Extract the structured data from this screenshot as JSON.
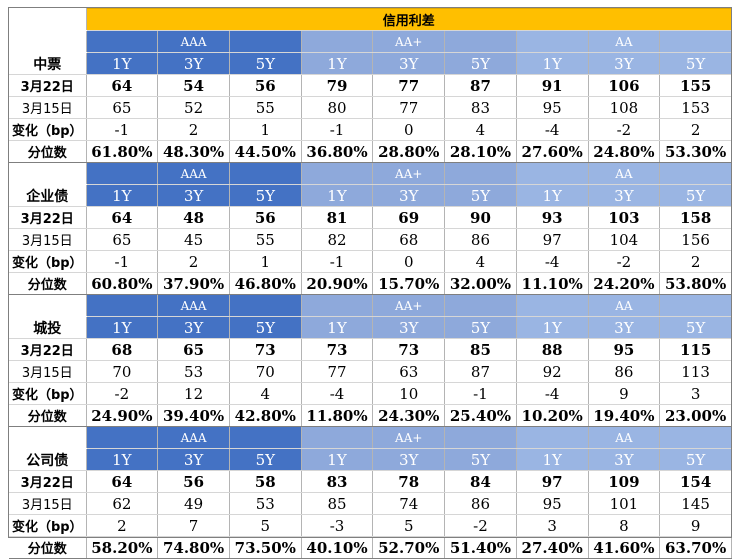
{
  "title": "信用利差",
  "tiers": [
    "AAA",
    "AA+",
    "AA"
  ],
  "tenors": [
    "1Y",
    "3Y",
    "5Y"
  ],
  "row_labels": [
    "3月22日",
    "3月15日",
    "变化（bp）",
    "分位数"
  ],
  "sections": [
    {
      "name": "中票",
      "rows": [
        [
          "64",
          "54",
          "56",
          "79",
          "77",
          "87",
          "91",
          "106",
          "155"
        ],
        [
          "65",
          "52",
          "55",
          "80",
          "77",
          "83",
          "95",
          "108",
          "153"
        ],
        [
          "-1",
          "2",
          "1",
          "-1",
          "0",
          "4",
          "-4",
          "-2",
          "2"
        ],
        [
          "61.80%",
          "48.30%",
          "44.50%",
          "36.80%",
          "28.80%",
          "28.10%",
          "27.60%",
          "24.80%",
          "53.30%"
        ]
      ]
    },
    {
      "name": "企业债",
      "rows": [
        [
          "64",
          "48",
          "56",
          "81",
          "69",
          "90",
          "93",
          "103",
          "158"
        ],
        [
          "65",
          "45",
          "55",
          "82",
          "68",
          "86",
          "97",
          "104",
          "156"
        ],
        [
          "-1",
          "2",
          "1",
          "-1",
          "0",
          "4",
          "-4",
          "-2",
          "2"
        ],
        [
          "60.80%",
          "37.90%",
          "46.80%",
          "20.90%",
          "15.70%",
          "32.00%",
          "11.10%",
          "24.20%",
          "53.80%"
        ]
      ]
    },
    {
      "name": "城投",
      "rows": [
        [
          "68",
          "65",
          "73",
          "73",
          "73",
          "85",
          "88",
          "95",
          "115"
        ],
        [
          "70",
          "53",
          "70",
          "77",
          "63",
          "87",
          "92",
          "86",
          "113"
        ],
        [
          "-2",
          "12",
          "4",
          "-4",
          "10",
          "-1",
          "-4",
          "9",
          "3"
        ],
        [
          "24.90%",
          "39.40%",
          "42.80%",
          "11.80%",
          "24.30%",
          "25.40%",
          "10.20%",
          "19.40%",
          "23.00%"
        ]
      ]
    },
    {
      "name": "公司债",
      "rows": [
        [
          "64",
          "56",
          "58",
          "83",
          "78",
          "84",
          "97",
          "109",
          "154"
        ],
        [
          "62",
          "49",
          "53",
          "85",
          "74",
          "86",
          "95",
          "101",
          "145"
        ],
        [
          "2",
          "7",
          "5",
          "-3",
          "5",
          "-2",
          "3",
          "8",
          "9"
        ],
        [
          "58.20%",
          "74.80%",
          "73.50%",
          "40.10%",
          "52.70%",
          "51.40%",
          "27.40%",
          "41.60%",
          "63.70%"
        ]
      ]
    }
  ]
}
